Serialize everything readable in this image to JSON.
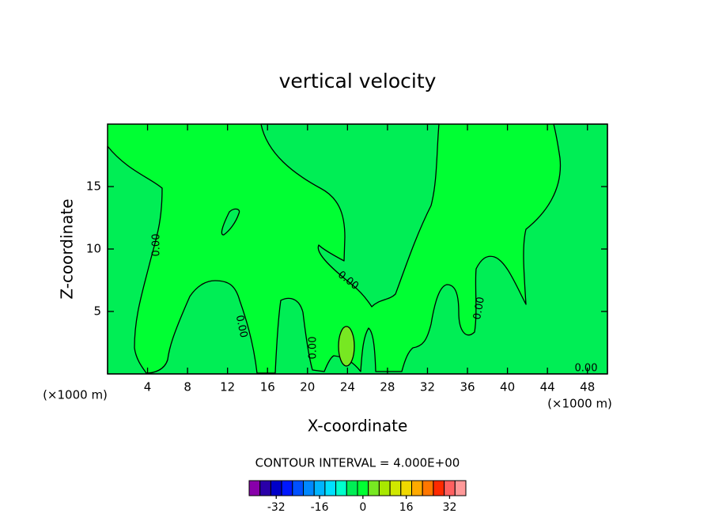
{
  "chart_data": {
    "type": "contour",
    "title": "vertical velocity",
    "x_label": "X-coordinate",
    "y_label": "Z-coordinate",
    "x_unit_label": "(×1000 m)",
    "xlim": [
      0,
      50
    ],
    "xticks": [
      4,
      8,
      12,
      16,
      20,
      24,
      28,
      32,
      36,
      40,
      44,
      48
    ],
    "ylim": [
      0,
      20
    ],
    "yticks": [
      5,
      10,
      15
    ],
    "contour_interval_label": "CONTOUR INTERVAL = 4.000E+00",
    "contour_labels": [
      "0.00",
      "0.00",
      "0.00",
      "0.00",
      "0.00",
      "0.00"
    ],
    "colorbar": {
      "levels": [
        -40,
        -36,
        -32,
        -28,
        -24,
        -20,
        -16,
        -12,
        -8,
        -4,
        0,
        4,
        8,
        12,
        16,
        20,
        24,
        28,
        32,
        36
      ],
      "colors": [
        "#8800aa",
        "#2a00a8",
        "#0000c8",
        "#0018ff",
        "#0050ff",
        "#0088ff",
        "#00b4ff",
        "#00e0ff",
        "#00ffcc",
        "#00ee55",
        "#00ff33",
        "#77e822",
        "#a8e800",
        "#d0e800",
        "#f0d800",
        "#ffaa00",
        "#ff7700",
        "#ff2a00",
        "#ff6060",
        "#ff9999"
      ],
      "ticks": [
        -32,
        -16,
        0,
        16,
        32
      ]
    }
  }
}
